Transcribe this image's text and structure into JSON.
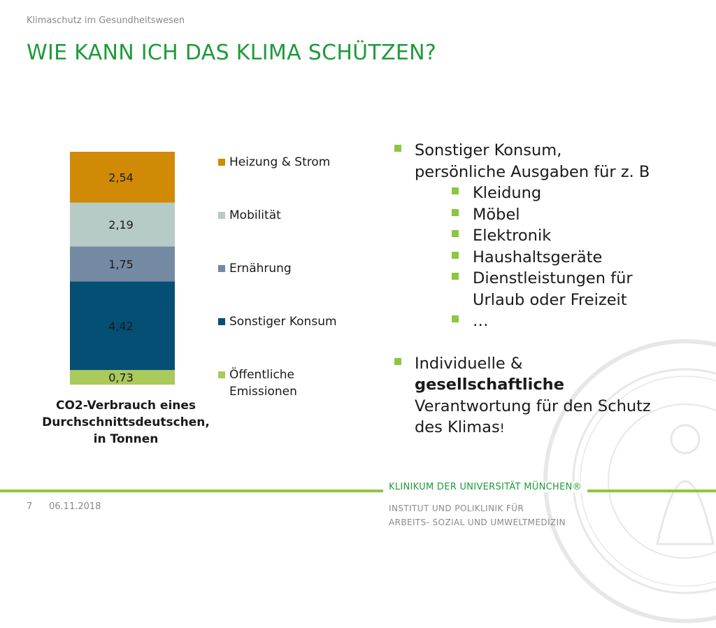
{
  "header": {
    "overline": "Klimaschutz im Gesundheitswesen",
    "title": "WIE KANN ICH DAS KLIMA SCHÜTZEN?"
  },
  "chart_data": {
    "type": "bar",
    "stacked": true,
    "categories": [
      ""
    ],
    "series": [
      {
        "name": "Öffentliche Emissionen",
        "legend_lines": [
          "Öffentliche",
          "Emissionen"
        ],
        "values": [
          0.73
        ],
        "label": "0,73",
        "color": "#a9c95a"
      },
      {
        "name": "Sonstiger Konsum",
        "legend_lines": [
          "Sonstiger Konsum"
        ],
        "values": [
          4.42
        ],
        "label": "4,42",
        "color": "#054e74"
      },
      {
        "name": "Ernährung",
        "legend_lines": [
          "Ernährung"
        ],
        "values": [
          1.75
        ],
        "label": "1,75",
        "color": "#748aa3"
      },
      {
        "name": "Mobilität",
        "legend_lines": [
          "Mobilität"
        ],
        "values": [
          2.19
        ],
        "label": "2,19",
        "color": "#b6cac6"
      },
      {
        "name": "Heizung & Strom",
        "legend_lines": [
          "Heizung & Strom"
        ],
        "values": [
          2.54
        ],
        "label": "2,54",
        "color": "#d08a06"
      }
    ],
    "legend_order": [
      "Heizung & Strom",
      "Mobilität",
      "Ernährung",
      "Sonstiger Konsum",
      "Öffentliche Emissionen"
    ],
    "legend_placement": "right",
    "caption_lines": [
      "CO2-Verbrauch eines",
      "Durchschnittsdeutschen,",
      "in Tonnen"
    ],
    "grid": false
  },
  "bullets": {
    "b1_lines": [
      "Sonstiger Konsum,",
      "persönliche Ausgaben für z. B"
    ],
    "sub": [
      {
        "lines": [
          "Kleidung"
        ]
      },
      {
        "lines": [
          "Möbel"
        ]
      },
      {
        "lines": [
          "Elektronik"
        ]
      },
      {
        "lines": [
          "Haushaltsgeräte"
        ]
      },
      {
        "lines": [
          "Dienstleistungen für",
          "Urlaub oder Freizeit"
        ]
      },
      {
        "lines": [
          "…"
        ]
      }
    ],
    "b2_line1": "Individuelle &",
    "b2_strong": "gesellschaftliche",
    "b2_line3": "Verantwortung für den Schutz",
    "b2_line4": "des Klimas",
    "b2_end": "!"
  },
  "footer": {
    "page_number": "7",
    "date": "06.11.2018",
    "brand": "KLINIKUM DER UNIVERSITÄT MÜNCHEN®",
    "institute_line1": "INSTITUT  UND POLIKLINIK FÜR",
    "institute_line2": "ARBEITS- SOZIAL UND UMWELTMEDIZIN"
  },
  "colors": {
    "accent_green": "#1e9b3a",
    "bullet_green": "#8dc63f"
  }
}
